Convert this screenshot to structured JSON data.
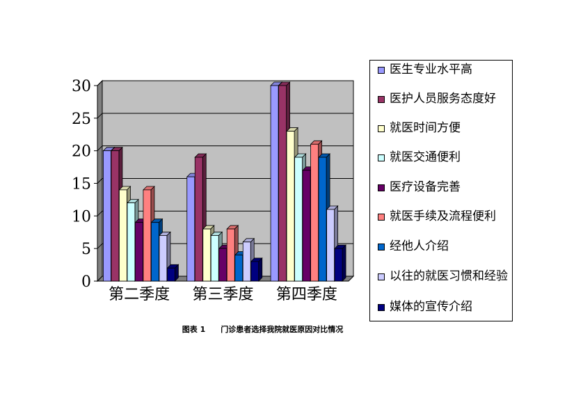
{
  "chart_data": {
    "type": "bar",
    "categories": [
      "第二季度",
      "第三季度",
      "第四季度"
    ],
    "ylim": [
      0,
      30
    ],
    "yticks": [
      0,
      5,
      10,
      15,
      20,
      25,
      30
    ],
    "grid": true,
    "legend_position": "right",
    "series": [
      {
        "name": "医生专业水平高",
        "color": "#9999ff",
        "values": [
          20,
          16,
          30
        ]
      },
      {
        "name": "医护人员服务态度好",
        "color": "#993366",
        "values": [
          20,
          19,
          30
        ]
      },
      {
        "name": "就医时间方便",
        "color": "#ffffcc",
        "values": [
          14,
          8,
          23
        ]
      },
      {
        "name": "就医交通便利",
        "color": "#ccffff",
        "values": [
          12,
          7,
          19
        ]
      },
      {
        "name": "医疗设备完善",
        "color": "#660066",
        "values": [
          9,
          5,
          17
        ]
      },
      {
        "name": "就医手续及流程便利",
        "color": "#ff8080",
        "values": [
          14,
          8,
          21
        ]
      },
      {
        "name": "经他人介绍",
        "color": "#0066cc",
        "values": [
          9,
          4,
          19
        ]
      },
      {
        "name": "以往的就医习惯和经验",
        "color": "#ccccff",
        "values": [
          7,
          6,
          11
        ]
      },
      {
        "name": "媒体的宣传介绍",
        "color": "#000080",
        "values": [
          2,
          3,
          5
        ]
      }
    ]
  },
  "caption": "图表 1　　门诊患者选择我院就医原因对比情况"
}
